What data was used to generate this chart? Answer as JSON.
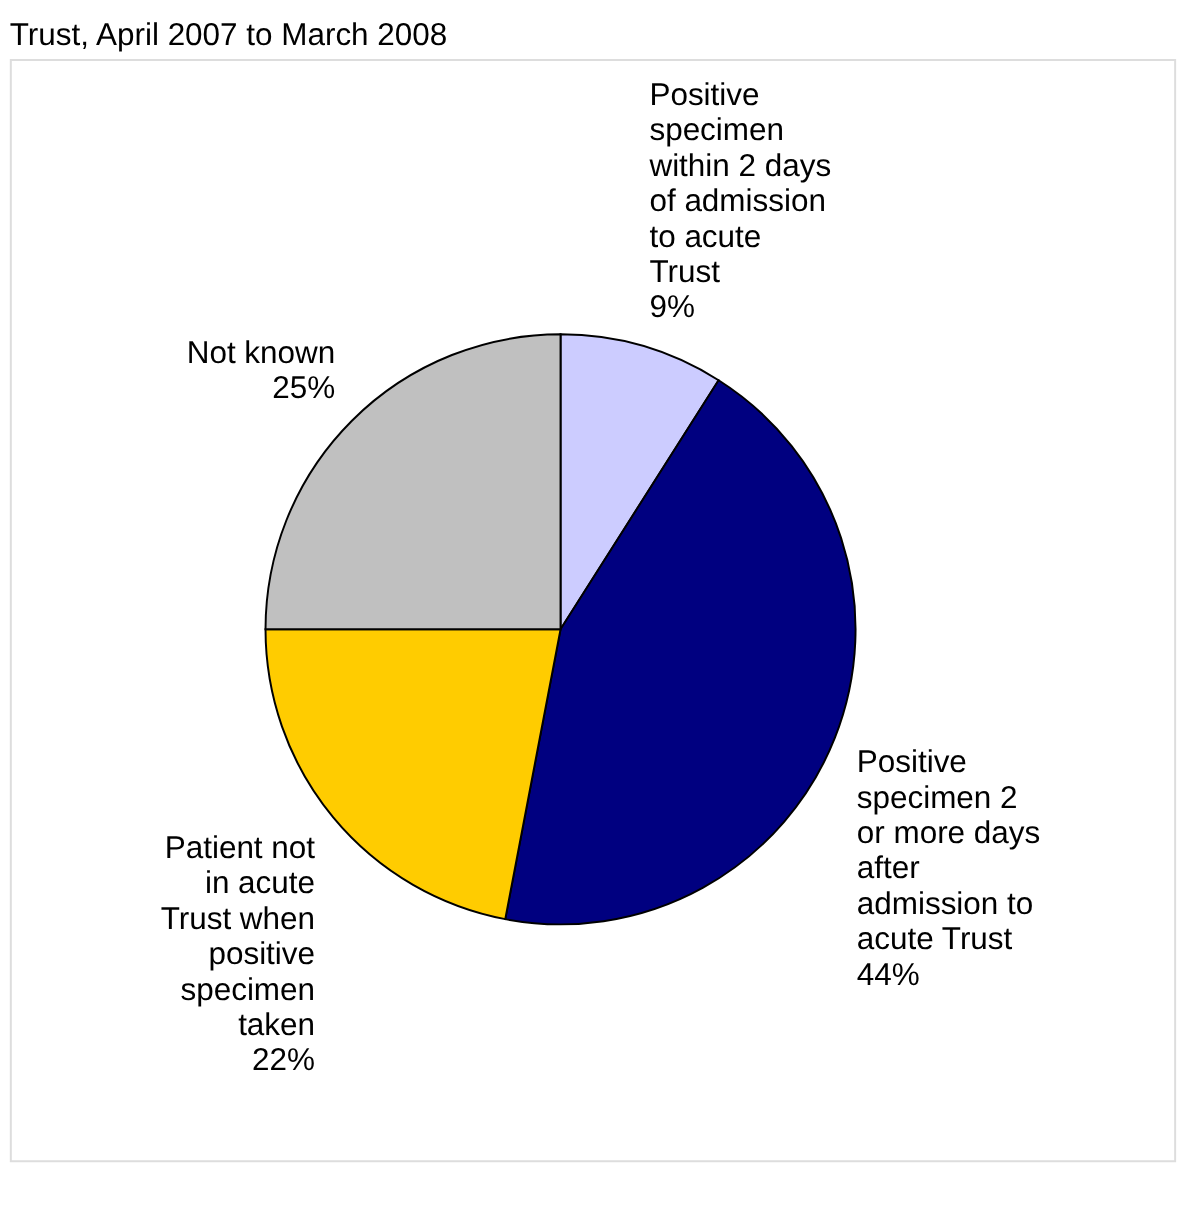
{
  "chart_data": {
    "type": "pie",
    "title": "Trust, April 2007 to March 2008",
    "categories": [
      "Positive\nspecimen\nwithin 2 days\nof admission\nto acute\nTrust",
      "Positive\nspecimen 2\nor more days\nafter\nadmission to\nacute Trust",
      "Patient not\nin acute\nTrust when\npositive\nspecimen\ntaken",
      "Not known"
    ],
    "values": [
      9,
      44,
      22,
      25
    ],
    "colors": [
      "#ccccff",
      "#000080",
      "#ffcc00",
      "#c0c0c0"
    ],
    "value_labels": [
      "9%",
      "44%",
      "22%",
      "25%"
    ]
  }
}
